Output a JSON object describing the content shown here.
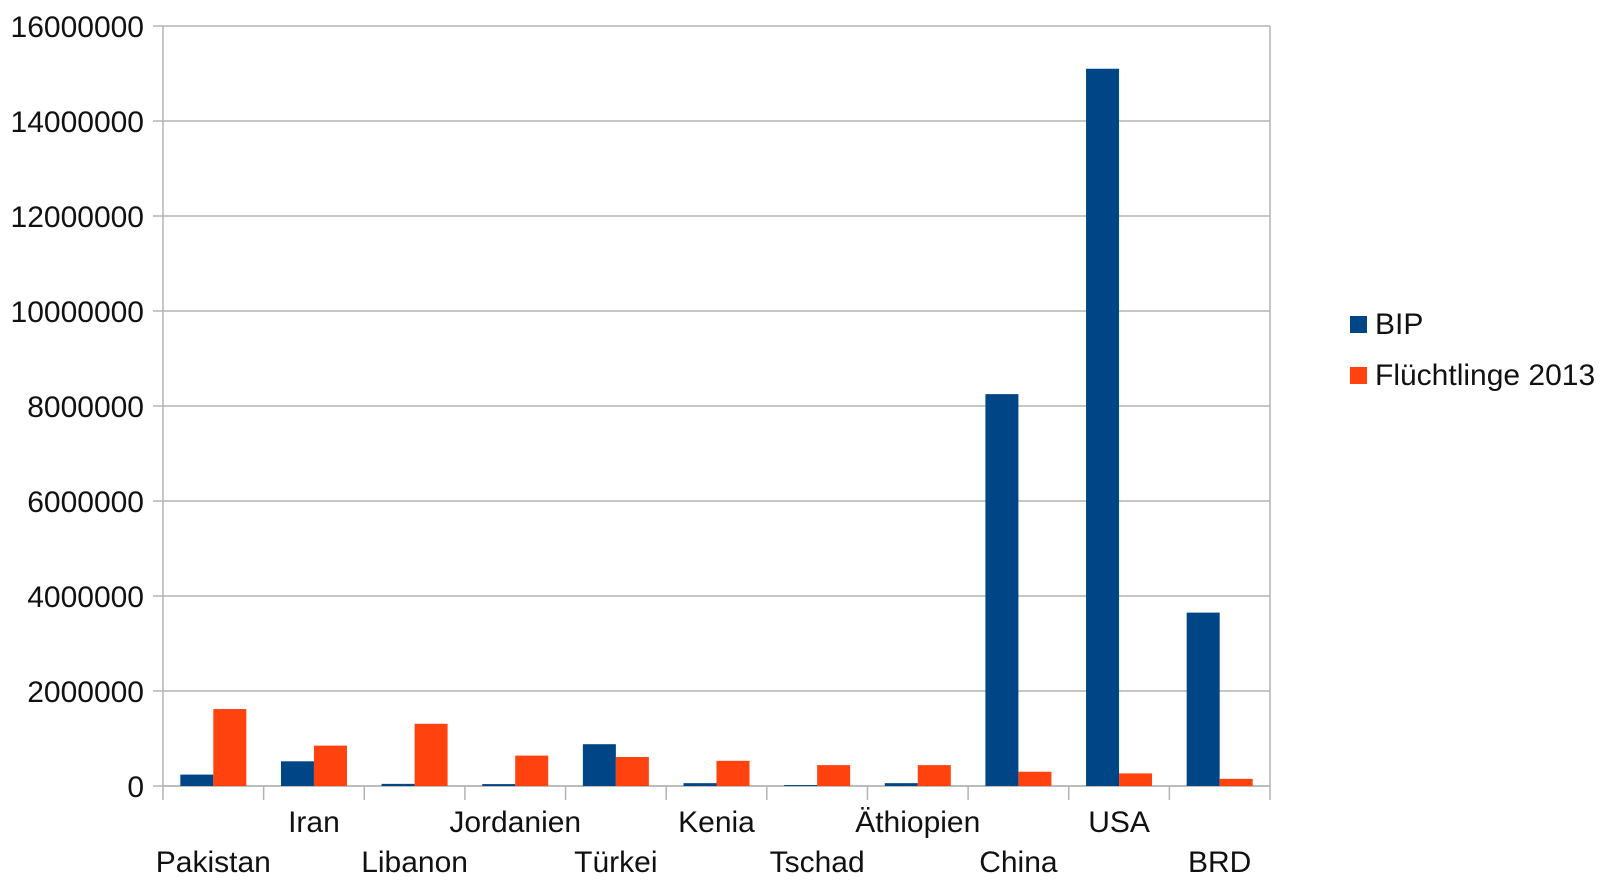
{
  "chart_data": {
    "type": "bar",
    "categories": [
      "Pakistan",
      "Iran",
      "Libanon",
      "Jordanien",
      "Türkei",
      "Kenia",
      "Tschad",
      "Äthiopien",
      "China",
      "USA",
      "BRD"
    ],
    "series": [
      {
        "name": "BIP",
        "color": "#004586",
        "values": [
          240000,
          520000,
          45000,
          40000,
          880000,
          60000,
          20000,
          60000,
          8250000,
          15100000,
          3650000
        ]
      },
      {
        "name": "Flüchtlinge 2013",
        "color": "#ff420e",
        "values": [
          1620000,
          850000,
          1310000,
          640000,
          610000,
          530000,
          440000,
          440000,
          300000,
          265000,
          150000
        ]
      }
    ],
    "ylim": [
      0,
      16000000
    ],
    "yticks": [
      "0",
      "2000000",
      "4000000",
      "6000000",
      "8000000",
      "10000000",
      "12000000",
      "14000000",
      "16000000"
    ],
    "grid": true,
    "legend_position": "right"
  }
}
